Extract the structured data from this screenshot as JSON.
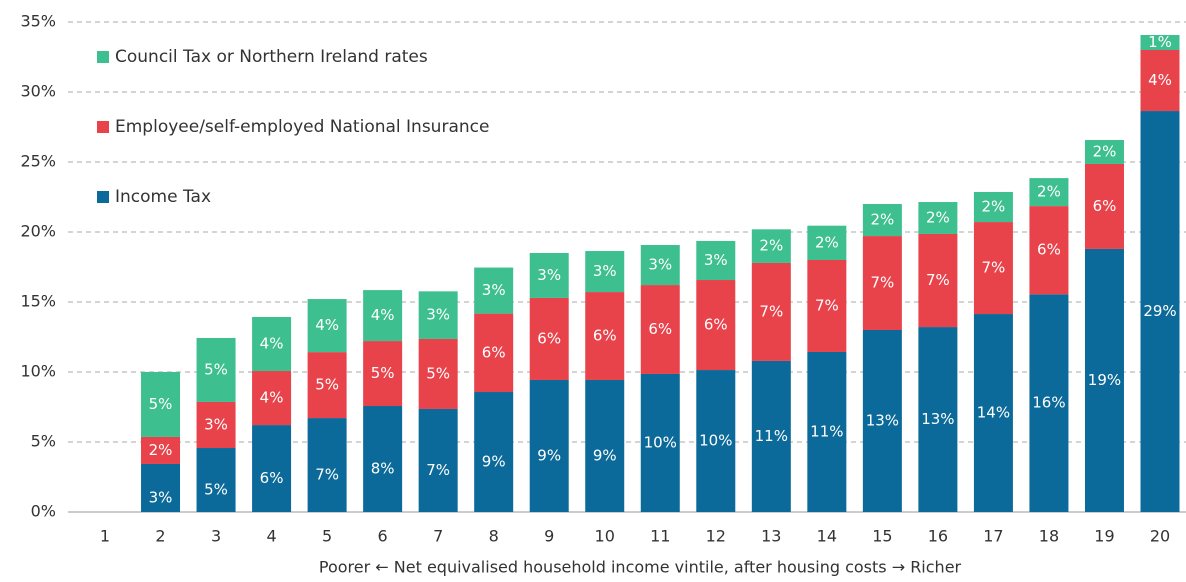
{
  "chart_data": {
    "type": "stacked_bar",
    "xlabel": "Poorer   ←   Net equivalised household income vintile, after housing costs   →   Richer",
    "categories": [
      "1",
      "2",
      "3",
      "4",
      "5",
      "6",
      "7",
      "8",
      "9",
      "10",
      "11",
      "12",
      "13",
      "14",
      "15",
      "16",
      "17",
      "18",
      "19",
      "20"
    ],
    "series": [
      {
        "name": "Income Tax",
        "color": "#0b6a99",
        "values": [
          null,
          3.43,
          4.57,
          6.21,
          6.71,
          7.57,
          7.36,
          8.57,
          9.43,
          9.43,
          9.86,
          10.14,
          10.79,
          11.43,
          13.0,
          13.21,
          14.14,
          15.55,
          18.79,
          28.64
        ],
        "value_labels": [
          null,
          "3%",
          "5%",
          "6%",
          "7%",
          "8%",
          "7%",
          "9%",
          "9%",
          "9%",
          "10%",
          "10%",
          "11%",
          "11%",
          "13%",
          "13%",
          "14%",
          "16%",
          "19%",
          "29%"
        ]
      },
      {
        "name": "Employee/self-employed National Insurance",
        "color": "#e8424b",
        "values": [
          null,
          1.93,
          3.29,
          3.86,
          4.71,
          4.64,
          5.0,
          5.6,
          5.86,
          6.28,
          6.35,
          6.43,
          7.0,
          6.57,
          6.71,
          6.65,
          6.57,
          6.3,
          6.07,
          4.36
        ],
        "value_labels": [
          null,
          "2%",
          "3%",
          "4%",
          "5%",
          "5%",
          "5%",
          "6%",
          "6%",
          "6%",
          "6%",
          "6%",
          "7%",
          "7%",
          "7%",
          "7%",
          "7%",
          "6%",
          "6%",
          "4%"
        ]
      },
      {
        "name": "Council Tax or Northern Ireland rates",
        "color": "#3dbf8f",
        "values": [
          null,
          4.64,
          4.57,
          3.86,
          3.79,
          3.64,
          3.4,
          3.29,
          3.21,
          2.93,
          2.86,
          2.79,
          2.4,
          2.45,
          2.29,
          2.28,
          2.15,
          2.0,
          1.71,
          1.07
        ],
        "value_labels": [
          null,
          "5%",
          "5%",
          "4%",
          "4%",
          "4%",
          "3%",
          "3%",
          "3%",
          "3%",
          "3%",
          "3%",
          "2%",
          "2%",
          "2%",
          "2%",
          "2%",
          "2%",
          "2%",
          "1%"
        ]
      }
    ],
    "ylim": [
      0,
      35
    ],
    "yticks": [
      {
        "value": 0,
        "label": "0%"
      },
      {
        "value": 5,
        "label": "5%"
      },
      {
        "value": 10,
        "label": "10%"
      },
      {
        "value": 15,
        "label": "15%"
      },
      {
        "value": 20,
        "label": "20%"
      },
      {
        "value": 25,
        "label": "25%"
      },
      {
        "value": 30,
        "label": "30%"
      },
      {
        "value": 35,
        "label": "35%"
      }
    ],
    "grid": true,
    "legend": "upper left"
  }
}
